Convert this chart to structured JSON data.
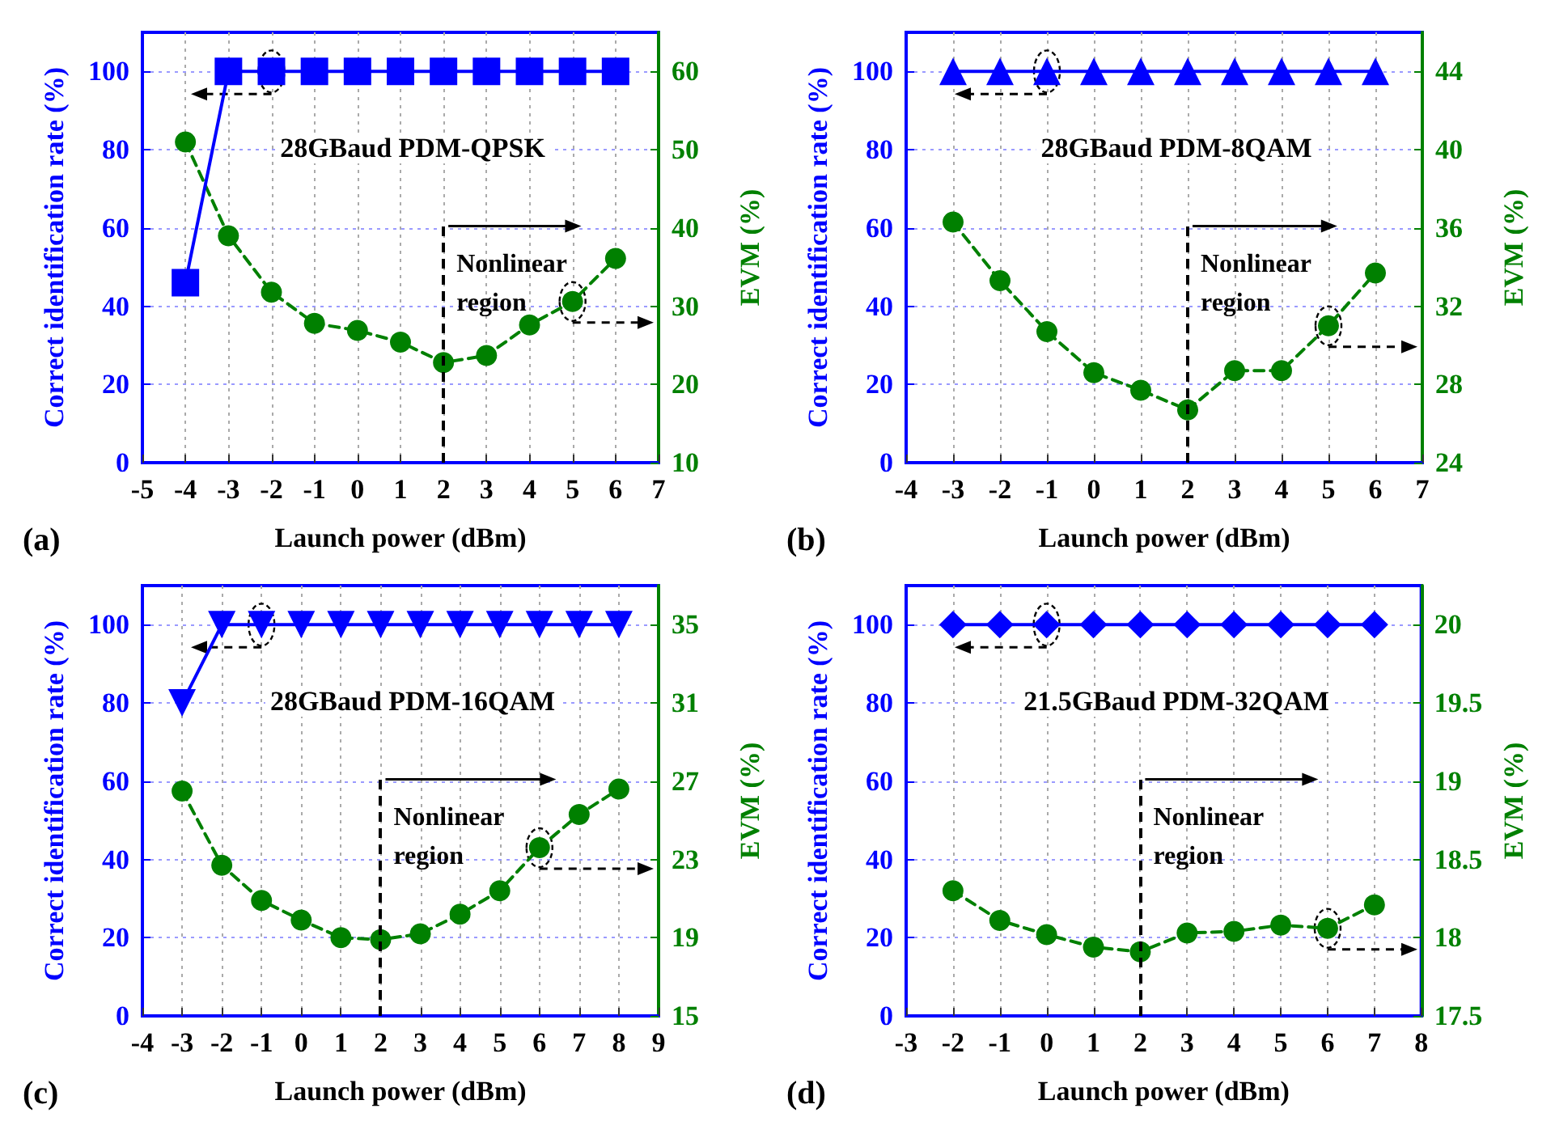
{
  "chart_data": [
    {
      "type": "line",
      "title": "28GBaud PDM-QPSK",
      "xlabel": "Launch power (dBm)",
      "ylabel": "Correct identification rate (%)",
      "y2label": "EVM (%)",
      "annotations": [
        "(a)"
      ],
      "xlim": [
        -5,
        7
      ],
      "xticks": [
        -5,
        -4,
        -3,
        -2,
        -1,
        0,
        1,
        2,
        3,
        4,
        5,
        6,
        7
      ],
      "ylim": [
        0,
        110
      ],
      "yticks": [
        0,
        20,
        40,
        60,
        80,
        100
      ],
      "y2lim": [
        10,
        65
      ],
      "y2ticks": [
        10,
        20,
        30,
        40,
        50,
        60
      ],
      "grid": true,
      "ref_lines": [
        {
          "axis": "x",
          "value": 2,
          "label": "Nonlinear region",
          "line_style": "dashed",
          "color": "#000000"
        }
      ],
      "series": [
        {
          "color": "#0000ff",
          "marker": "square",
          "line_style": "solid",
          "x": [
            -4,
            -3,
            -2,
            -1,
            0,
            1,
            2,
            3,
            4,
            5,
            6
          ],
          "values": [
            46,
            100,
            100,
            100,
            100,
            100,
            100,
            100,
            100,
            100,
            100
          ]
        },
        {
          "color": "#008000",
          "marker": "circle",
          "line_style": "dashed",
          "axis": "y2",
          "x": [
            -4,
            -3,
            -2,
            -1,
            0,
            1,
            2,
            3,
            4,
            5,
            6
          ],
          "values": [
            51.0,
            39.0,
            31.8,
            27.8,
            26.9,
            25.4,
            22.8,
            23.7,
            27.6,
            30.6,
            36.1
          ]
        }
      ]
    },
    {
      "type": "line",
      "title": "28GBaud PDM-8QAM",
      "xlabel": "Launch power (dBm)",
      "ylabel": "Correct identification rate (%)",
      "y2label": "EVM (%)",
      "annotations": [
        "(b)"
      ],
      "xlim": [
        -4,
        7
      ],
      "xticks": [
        -4,
        -3,
        -2,
        -1,
        0,
        1,
        2,
        3,
        4,
        5,
        6,
        7
      ],
      "ylim": [
        0,
        110
      ],
      "yticks": [
        0,
        20,
        40,
        60,
        80,
        100
      ],
      "y2lim": [
        24,
        46
      ],
      "y2ticks": [
        24,
        28,
        32,
        36,
        40,
        44
      ],
      "grid": true,
      "ref_lines": [
        {
          "axis": "x",
          "value": 2,
          "label": "Nonlinear region",
          "line_style": "dashed",
          "color": "#000000"
        }
      ],
      "series": [
        {
          "color": "#0000ff",
          "marker": "triangle",
          "line_style": "solid",
          "x": [
            -3,
            -2,
            -1,
            0,
            1,
            2,
            3,
            4,
            5,
            6
          ],
          "values": [
            100,
            100,
            100,
            100,
            100,
            100,
            100,
            100,
            100,
            100
          ]
        },
        {
          "color": "#008000",
          "marker": "circle",
          "line_style": "dashed",
          "axis": "y2",
          "x": [
            -3,
            -2,
            -1,
            0,
            1,
            2,
            3,
            4,
            5,
            6
          ],
          "values": [
            36.3,
            33.3,
            30.7,
            28.6,
            27.7,
            26.7,
            28.7,
            28.7,
            31.0,
            33.7
          ]
        }
      ]
    },
    {
      "type": "line",
      "title": "28GBaud PDM-16QAM",
      "xlabel": "Launch power (dBm)",
      "ylabel": "Correct identification rate (%)",
      "y2label": "EVM (%)",
      "annotations": [
        "(c)"
      ],
      "xlim": [
        -4,
        9
      ],
      "xticks": [
        -4,
        -3,
        -2,
        -1,
        0,
        1,
        2,
        3,
        4,
        5,
        6,
        7,
        8,
        9
      ],
      "ylim": [
        0,
        110
      ],
      "yticks": [
        0,
        20,
        40,
        60,
        80,
        100
      ],
      "y2lim": [
        15,
        37
      ],
      "y2ticks": [
        15,
        19,
        23,
        27,
        31,
        35
      ],
      "grid": true,
      "ref_lines": [
        {
          "axis": "x",
          "value": 2,
          "label": "Nonlinear region",
          "line_style": "dashed",
          "color": "#000000"
        }
      ],
      "series": [
        {
          "color": "#0000ff",
          "marker": "triangle-down",
          "line_style": "solid",
          "x": [
            -3,
            -2,
            -1,
            0,
            1,
            2,
            3,
            4,
            5,
            6,
            7,
            8
          ],
          "values": [
            80,
            100,
            100,
            100,
            100,
            100,
            100,
            100,
            100,
            100,
            100,
            100
          ]
        },
        {
          "color": "#008000",
          "marker": "circle",
          "line_style": "dashed",
          "axis": "y2",
          "x": [
            -3,
            -2,
            -1,
            0,
            1,
            2,
            3,
            4,
            5,
            6,
            7,
            8
          ],
          "values": [
            26.5,
            22.7,
            20.9,
            19.9,
            19.0,
            18.9,
            19.2,
            20.2,
            21.4,
            23.6,
            25.3,
            26.6
          ]
        }
      ]
    },
    {
      "type": "line",
      "title": "21.5GBaud PDM-32QAM",
      "xlabel": "Launch power (dBm)",
      "ylabel": "Correct identification rate (%)",
      "y2label": "EVM (%)",
      "annotations": [
        "(d)"
      ],
      "xlim": [
        -3,
        8
      ],
      "xticks": [
        -3,
        -2,
        -1,
        0,
        1,
        2,
        3,
        4,
        5,
        6,
        7,
        8
      ],
      "ylim": [
        0,
        110
      ],
      "yticks": [
        0,
        20,
        40,
        60,
        80,
        100
      ],
      "y2lim": [
        17.5,
        20.25
      ],
      "y2ticks": [
        17.5,
        18,
        18.5,
        19,
        19.5,
        20
      ],
      "grid": true,
      "ref_lines": [
        {
          "axis": "x",
          "value": 2,
          "label": "Nonlinear region",
          "line_style": "dashed",
          "color": "#000000"
        }
      ],
      "series": [
        {
          "color": "#0000ff",
          "marker": "diamond",
          "line_style": "solid",
          "x": [
            -2,
            -1,
            0,
            1,
            2,
            3,
            4,
            5,
            6,
            7
          ],
          "values": [
            100,
            100,
            100,
            100,
            100,
            100,
            100,
            100,
            100,
            100
          ]
        },
        {
          "color": "#008000",
          "marker": "circle",
          "line_style": "dashed",
          "axis": "y2",
          "x": [
            -2,
            -1,
            0,
            1,
            2,
            3,
            4,
            5,
            6,
            7
          ],
          "values": [
            18.3,
            18.11,
            18.02,
            17.94,
            17.91,
            18.03,
            18.04,
            18.08,
            18.06,
            18.21
          ]
        }
      ]
    }
  ]
}
